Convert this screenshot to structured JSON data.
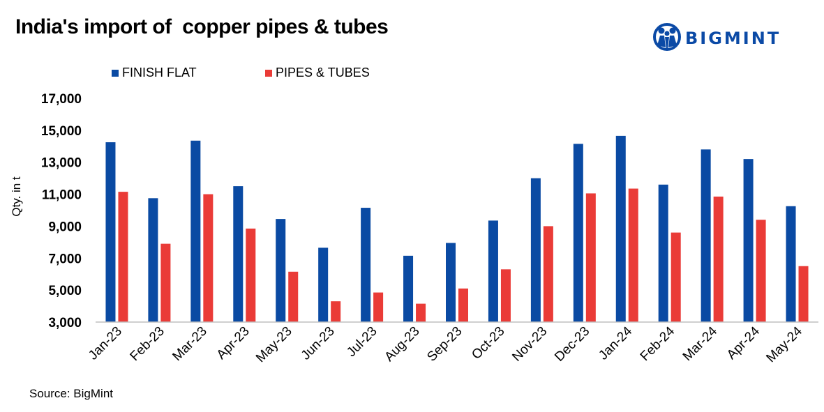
{
  "title": "India's import of  copper pipes & tubes",
  "logo": {
    "text": "BIGMINT",
    "icon": "bigmint-people-icon",
    "color": "#0b4aa6"
  },
  "source": "Source: BigMint",
  "chart_data": {
    "type": "bar",
    "title": "India's import of  copper pipes & tubes",
    "xlabel": "",
    "ylabel": "Qty. in t",
    "ylim": [
      3000,
      17000
    ],
    "yticks": [
      3000,
      5000,
      7000,
      9000,
      11000,
      13000,
      15000,
      17000
    ],
    "ytick_labels": [
      "3,000",
      "5,000",
      "7,000",
      "9,000",
      "11,000",
      "13,000",
      "15,000",
      "17,000"
    ],
    "grid": false,
    "legend_position": "top-left",
    "categories": [
      "Jan-23",
      "Feb-23",
      "Mar-23",
      "Apr-23",
      "May-23",
      "Jun-23",
      "Jul-23",
      "Aug-23",
      "Sep-23",
      "Oct-23",
      "Nov-23",
      "Dec-23",
      "Jan-24",
      "Feb-24",
      "Mar-24",
      "Apr-24",
      "May-24"
    ],
    "series": [
      {
        "name": "FINISH FLAT",
        "color": "#0a4aa3",
        "values": [
          14250,
          10750,
          14350,
          11500,
          9450,
          7650,
          10150,
          7150,
          7950,
          9350,
          12000,
          14150,
          14650,
          11600,
          13800,
          13200,
          10250
        ]
      },
      {
        "name": "PIPES & TUBES",
        "color": "#ea3b37",
        "values": [
          11150,
          7900,
          11000,
          8850,
          6150,
          4300,
          4850,
          4150,
          5100,
          6300,
          9000,
          11050,
          11350,
          8600,
          10850,
          9400,
          6500
        ]
      }
    ]
  }
}
